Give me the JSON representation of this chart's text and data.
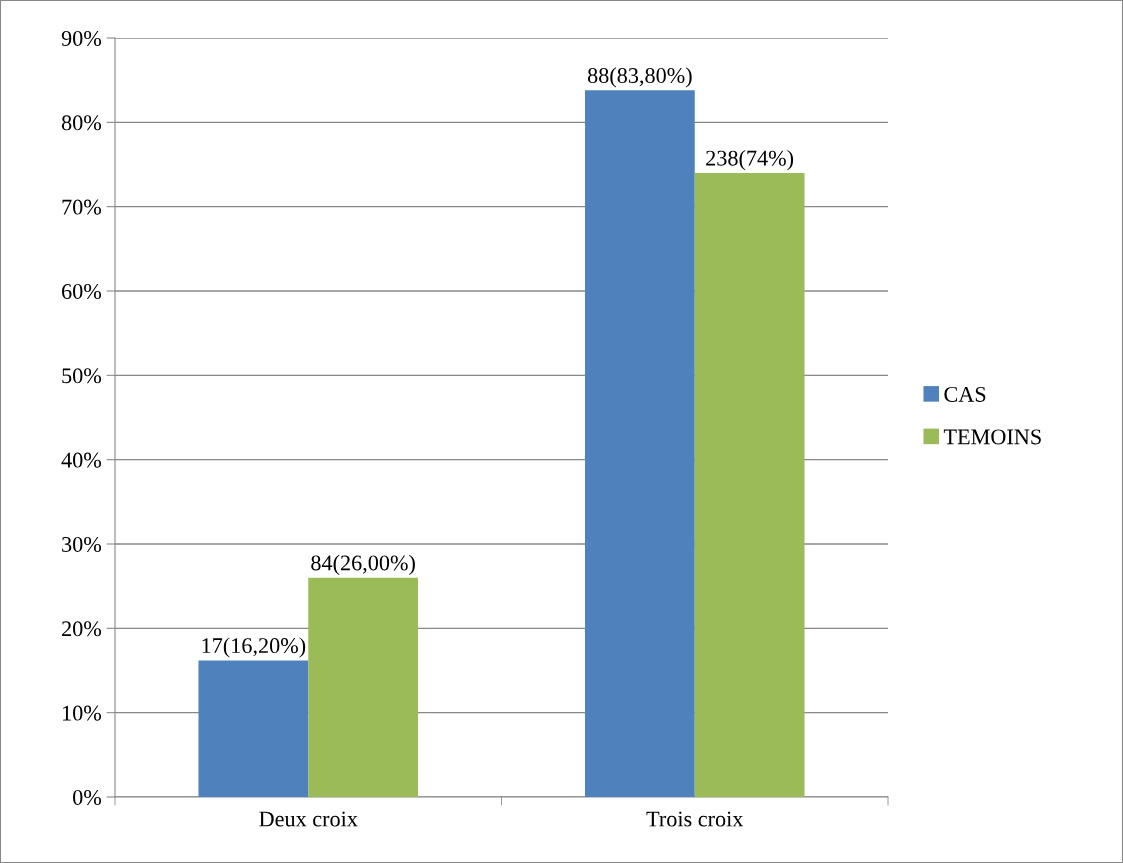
{
  "chart_data": {
    "type": "bar",
    "categories": [
      "Deux croix",
      "Trois croix"
    ],
    "series": [
      {
        "name": "CAS",
        "color": "#4f81bd",
        "values": [
          16.2,
          83.8
        ],
        "value_labels": [
          "17(16,20%)",
          "88(83,80%)"
        ]
      },
      {
        "name": "TEMOINS",
        "color": "#9bbb59",
        "values": [
          26.0,
          74.0
        ],
        "value_labels": [
          "84(26,00%)",
          "238(74%)"
        ]
      }
    ],
    "ylim": [
      0,
      90
    ],
    "yticks": [
      {
        "value": 0,
        "label": "0%"
      },
      {
        "value": 10,
        "label": "10%"
      },
      {
        "value": 20,
        "label": "20%"
      },
      {
        "value": 30,
        "label": "30%"
      },
      {
        "value": 40,
        "label": "40%"
      },
      {
        "value": 50,
        "label": "50%"
      },
      {
        "value": 60,
        "label": "60%"
      },
      {
        "value": 70,
        "label": "70%"
      },
      {
        "value": 80,
        "label": "80%"
      },
      {
        "value": 90,
        "label": "90%"
      }
    ],
    "grid": "y",
    "legend": "right"
  }
}
